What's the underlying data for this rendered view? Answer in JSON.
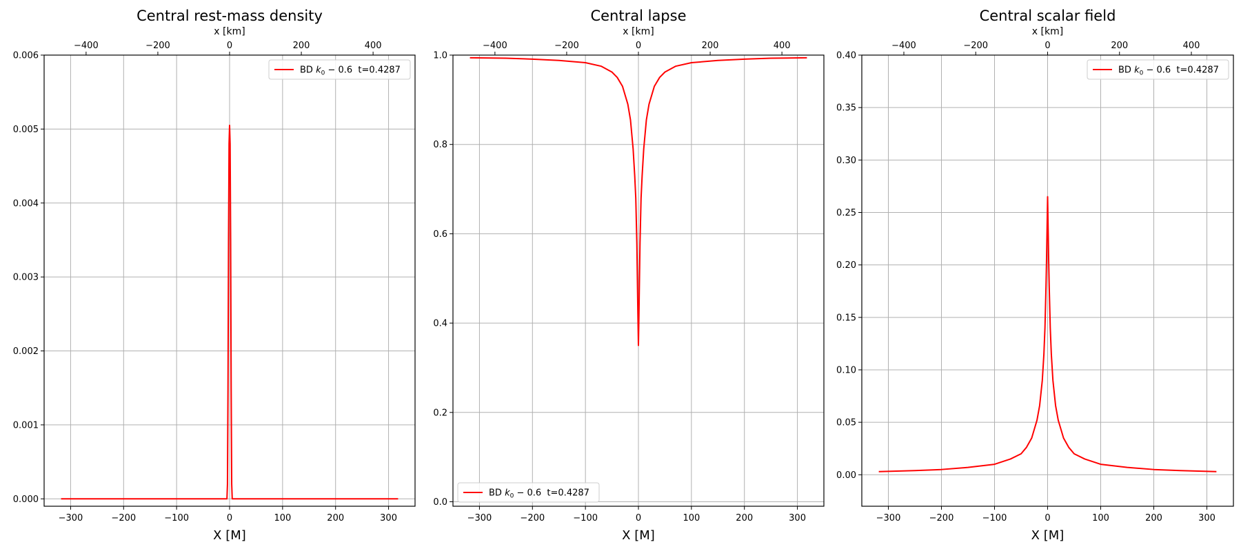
{
  "chart_data": [
    {
      "type": "line",
      "title": "Central rest-mass density",
      "xlabel": "X [M]",
      "x2label": "x [km]",
      "ylabel": "",
      "xlim": [
        -350,
        350
      ],
      "ylim": [
        -0.0001,
        0.006
      ],
      "x2lim": [
        -517,
        517
      ],
      "xticks": [
        -300,
        -200,
        -100,
        0,
        100,
        200,
        300
      ],
      "x2ticks": [
        -400,
        -200,
        0,
        200,
        400
      ],
      "yticks": [
        0.0,
        0.001,
        0.002,
        0.003,
        0.004,
        0.005,
        0.006
      ],
      "ytick_labels": [
        "0.000",
        "0.001",
        "0.002",
        "0.003",
        "0.004",
        "0.005",
        "0.006"
      ],
      "grid": true,
      "legend_loc": "top-right",
      "series": [
        {
          "name": "BD k0 - 0.6  t=0.4287",
          "color": "#ff0000",
          "x": [
            -318,
            -5,
            -4,
            -3,
            -2,
            -1,
            0,
            1,
            2,
            3,
            4,
            5,
            318
          ],
          "y": [
            0.0,
            0.0,
            0.0002,
            0.0015,
            0.0035,
            0.0048,
            0.00505,
            0.0048,
            0.0035,
            0.0015,
            0.0002,
            0.0,
            0.0
          ]
        }
      ]
    },
    {
      "type": "line",
      "title": "Central lapse",
      "xlabel": "X [M]",
      "x2label": "x [km]",
      "ylabel": "",
      "xlim": [
        -350,
        350
      ],
      "ylim": [
        -0.01,
        1.0
      ],
      "x2lim": [
        -517,
        517
      ],
      "xticks": [
        -300,
        -200,
        -100,
        0,
        100,
        200,
        300
      ],
      "x2ticks": [
        -400,
        -200,
        0,
        200,
        400
      ],
      "yticks": [
        0.0,
        0.2,
        0.4,
        0.6,
        0.8,
        1.0
      ],
      "ytick_labels": [
        "0.0",
        "0.2",
        "0.4",
        "0.6",
        "0.8",
        "1.0"
      ],
      "grid": true,
      "legend_loc": "bottom-left",
      "series": [
        {
          "name": "BD k0 - 0.6  t=0.4287",
          "color": "#ff0000",
          "x": [
            -318,
            -250,
            -200,
            -150,
            -100,
            -70,
            -50,
            -40,
            -30,
            -20,
            -15,
            -10,
            -7,
            -5,
            -3,
            -2,
            -1,
            0,
            1,
            2,
            3,
            5,
            7,
            10,
            15,
            20,
            30,
            40,
            50,
            70,
            100,
            150,
            200,
            250,
            318
          ],
          "y": [
            0.994,
            0.993,
            0.991,
            0.988,
            0.983,
            0.975,
            0.962,
            0.95,
            0.93,
            0.89,
            0.855,
            0.79,
            0.73,
            0.68,
            0.58,
            0.5,
            0.42,
            0.35,
            0.42,
            0.5,
            0.58,
            0.68,
            0.73,
            0.79,
            0.855,
            0.89,
            0.93,
            0.95,
            0.962,
            0.975,
            0.983,
            0.988,
            0.991,
            0.993,
            0.994
          ]
        }
      ]
    },
    {
      "type": "line",
      "title": "Central scalar field",
      "xlabel": "X [M]",
      "x2label": "x [km]",
      "ylabel": "",
      "xlim": [
        -350,
        350
      ],
      "ylim": [
        -0.03,
        0.4
      ],
      "x2lim": [
        -517,
        517
      ],
      "xticks": [
        -300,
        -200,
        -100,
        0,
        100,
        200,
        300
      ],
      "x2ticks": [
        -400,
        -200,
        0,
        200,
        400
      ],
      "yticks": [
        0.0,
        0.05,
        0.1,
        0.15,
        0.2,
        0.25,
        0.3,
        0.35,
        0.4
      ],
      "ytick_labels": [
        "0.00",
        "0.05",
        "0.10",
        "0.15",
        "0.20",
        "0.25",
        "0.30",
        "0.35",
        "0.40"
      ],
      "grid": true,
      "legend_loc": "top-right",
      "series": [
        {
          "name": "BD k0 - 0.6  t=0.4287",
          "color": "#ff0000",
          "x": [
            -318,
            -250,
            -200,
            -150,
            -100,
            -70,
            -50,
            -40,
            -30,
            -20,
            -15,
            -10,
            -7,
            -5,
            -3,
            -2,
            -1,
            0,
            1,
            2,
            3,
            5,
            7,
            10,
            15,
            20,
            30,
            40,
            50,
            70,
            100,
            150,
            200,
            250,
            318
          ],
          "y": [
            0.003,
            0.004,
            0.005,
            0.007,
            0.01,
            0.015,
            0.02,
            0.026,
            0.035,
            0.052,
            0.066,
            0.09,
            0.115,
            0.14,
            0.18,
            0.205,
            0.235,
            0.265,
            0.235,
            0.205,
            0.18,
            0.14,
            0.115,
            0.09,
            0.066,
            0.052,
            0.035,
            0.026,
            0.02,
            0.015,
            0.01,
            0.007,
            0.005,
            0.004,
            0.003
          ]
        }
      ]
    }
  ]
}
